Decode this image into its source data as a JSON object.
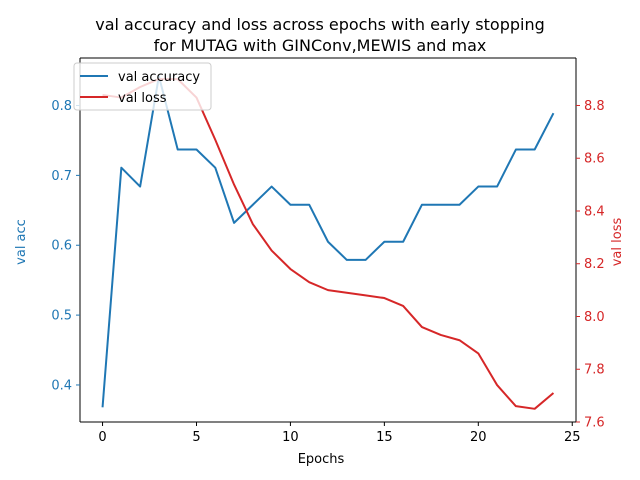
{
  "chart_data": {
    "type": "line",
    "title_lines": [
      "val accuracy and loss across epochs with early stopping",
      "for MUTAG with GINConv,MEWIS and max"
    ],
    "xlabel": "Epochs",
    "y_left_label": "val acc",
    "y_right_label": "val loss",
    "x": [
      0,
      1,
      2,
      3,
      4,
      5,
      6,
      7,
      8,
      9,
      10,
      11,
      12,
      13,
      14,
      15,
      16,
      17,
      18,
      19,
      20,
      21,
      22,
      23,
      24
    ],
    "xlim": [
      -1.2,
      25.2
    ],
    "x_ticks": [
      0,
      5,
      10,
      15,
      20,
      25
    ],
    "x_tick_labels": [
      "0",
      "5",
      "10",
      "15",
      "20",
      "25"
    ],
    "y_left_lim": [
      0.347,
      0.868
    ],
    "y_left_ticks": [
      0.4,
      0.5,
      0.6,
      0.7,
      0.8
    ],
    "y_left_tick_labels": [
      "0.4",
      "0.5",
      "0.6",
      "0.7",
      "0.8"
    ],
    "y_right_lim": [
      7.6,
      8.98
    ],
    "y_right_ticks": [
      7.6,
      7.8,
      8.0,
      8.2,
      8.4,
      8.6,
      8.8
    ],
    "y_right_tick_labels": [
      "7.6",
      "7.8",
      "8.0",
      "8.2",
      "8.4",
      "8.6",
      "8.8"
    ],
    "grid": false,
    "legend_position": "upper-left",
    "series": [
      {
        "name": "val accuracy",
        "axis": "left",
        "color": "#1f77b4",
        "values": [
          0.368,
          0.711,
          0.684,
          0.842,
          0.737,
          0.737,
          0.711,
          0.632,
          0.658,
          0.684,
          0.658,
          0.658,
          0.605,
          0.579,
          0.579,
          0.605,
          0.605,
          0.658,
          0.658,
          0.658,
          0.684,
          0.684,
          0.737,
          0.737,
          0.789
        ]
      },
      {
        "name": "val loss",
        "axis": "right",
        "color": "#d62728",
        "values": [
          8.84,
          8.83,
          8.87,
          8.9,
          8.9,
          8.83,
          8.67,
          8.5,
          8.35,
          8.25,
          8.18,
          8.13,
          8.1,
          8.09,
          8.08,
          8.07,
          8.04,
          7.96,
          7.93,
          7.91,
          7.86,
          7.74,
          7.66,
          7.65,
          7.71
        ]
      }
    ],
    "left_axis_color": "#1f77b4",
    "right_axis_color": "#d62728"
  }
}
